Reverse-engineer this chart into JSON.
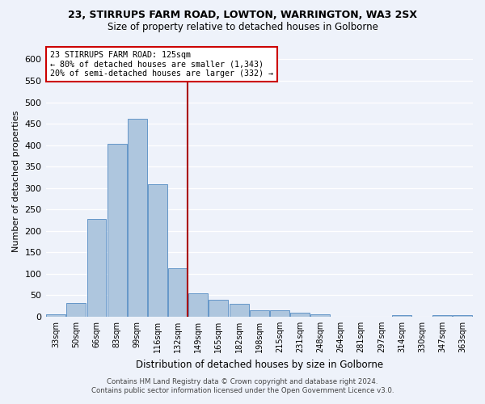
{
  "title1": "23, STIRRUPS FARM ROAD, LOWTON, WARRINGTON, WA3 2SX",
  "title2": "Size of property relative to detached houses in Golborne",
  "xlabel": "Distribution of detached houses by size in Golborne",
  "ylabel": "Number of detached properties",
  "footer1": "Contains HM Land Registry data © Crown copyright and database right 2024.",
  "footer2": "Contains public sector information licensed under the Open Government Licence v3.0.",
  "bar_labels": [
    "33sqm",
    "50sqm",
    "66sqm",
    "83sqm",
    "99sqm",
    "116sqm",
    "132sqm",
    "149sqm",
    "165sqm",
    "182sqm",
    "198sqm",
    "215sqm",
    "231sqm",
    "248sqm",
    "264sqm",
    "281sqm",
    "297sqm",
    "314sqm",
    "330sqm",
    "347sqm",
    "363sqm"
  ],
  "bar_values": [
    5,
    32,
    228,
    403,
    462,
    308,
    112,
    54,
    40,
    30,
    14,
    14,
    9,
    5,
    0,
    0,
    0,
    4,
    0,
    4,
    4
  ],
  "bar_color": "#aec6de",
  "bar_edge_color": "#6496c8",
  "bg_color": "#eef2fa",
  "grid_color": "#ffffff",
  "vline_color": "#aa0000",
  "vline_pos": 6.48,
  "annotation_text": "23 STIRRUPS FARM ROAD: 125sqm\n← 80% of detached houses are smaller (1,343)\n20% of semi-detached houses are larger (332) →",
  "annotation_box_color": "#ffffff",
  "annotation_box_edge": "#cc0000",
  "ylim": [
    0,
    630
  ],
  "yticks": [
    0,
    50,
    100,
    150,
    200,
    250,
    300,
    350,
    400,
    450,
    500,
    550,
    600
  ]
}
